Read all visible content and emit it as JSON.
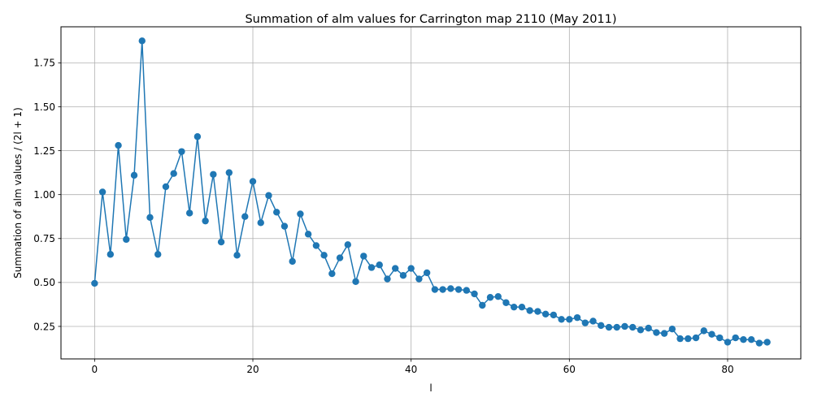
{
  "chart_data": {
    "type": "line",
    "title": "Summation of alm values for Carrington map 2110 (May 2011)",
    "xlabel": "l",
    "ylabel": "Summation of alm values / (2l + 1)",
    "xlim": [
      -4.25,
      89.25
    ],
    "ylim": [
      0.065,
      1.955
    ],
    "xticks": [
      0,
      20,
      40,
      60,
      80
    ],
    "yticks": [
      0.25,
      0.5,
      0.75,
      1.0,
      1.25,
      1.5,
      1.75
    ],
    "ytick_labels": [
      "0.25",
      "0.50",
      "0.75",
      "1.00",
      "1.25",
      "1.50",
      "1.75"
    ],
    "grid": true,
    "marker": "circle",
    "color": "#1f77b4",
    "series": [
      {
        "x": [
          0,
          1,
          2,
          3,
          4,
          5,
          6,
          7,
          8,
          9,
          10,
          11,
          12,
          13,
          14,
          15,
          16,
          17,
          18,
          19,
          20,
          21,
          22,
          23,
          24,
          25,
          26,
          27,
          28,
          29,
          30,
          31,
          32,
          33,
          34,
          35,
          36,
          37,
          38,
          39,
          40,
          41,
          42,
          43,
          44,
          45,
          46,
          47,
          48,
          49,
          50,
          51,
          52,
          53,
          54,
          55,
          56,
          57,
          58,
          59,
          60,
          61,
          62,
          63,
          64,
          65,
          66,
          67,
          68,
          69,
          70,
          71,
          72,
          73,
          74,
          75,
          76,
          77,
          78,
          79,
          80,
          81,
          82,
          83,
          84,
          85
        ],
        "y": [
          0.495,
          1.015,
          0.66,
          1.28,
          0.745,
          1.11,
          1.875,
          0.87,
          0.66,
          1.045,
          1.12,
          1.245,
          0.895,
          1.33,
          0.85,
          1.115,
          0.73,
          1.125,
          0.655,
          0.875,
          1.075,
          0.84,
          0.995,
          0.9,
          0.82,
          0.62,
          0.89,
          0.775,
          0.71,
          0.655,
          0.55,
          0.64,
          0.715,
          0.505,
          0.65,
          0.585,
          0.6,
          0.52,
          0.58,
          0.54,
          0.58,
          0.52,
          0.555,
          0.46,
          0.46,
          0.465,
          0.46,
          0.455,
          0.435,
          0.37,
          0.415,
          0.42,
          0.385,
          0.36,
          0.36,
          0.34,
          0.335,
          0.32,
          0.315,
          0.29,
          0.29,
          0.3,
          0.27,
          0.28,
          0.255,
          0.245,
          0.245,
          0.25,
          0.245,
          0.23,
          0.24,
          0.215,
          0.21,
          0.235,
          0.18,
          0.18,
          0.185,
          0.225,
          0.205,
          0.185,
          0.16,
          0.185,
          0.175,
          0.175,
          0.155,
          0.16
        ]
      }
    ]
  }
}
